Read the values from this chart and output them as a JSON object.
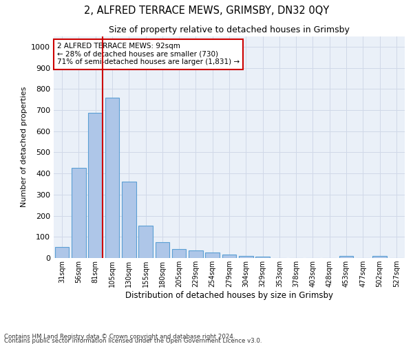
{
  "title": "2, ALFRED TERRACE MEWS, GRIMSBY, DN32 0QY",
  "subtitle": "Size of property relative to detached houses in Grimsby",
  "xlabel": "Distribution of detached houses by size in Grimsby",
  "ylabel": "Number of detached properties",
  "categories": [
    "31sqm",
    "56sqm",
    "81sqm",
    "105sqm",
    "130sqm",
    "155sqm",
    "180sqm",
    "205sqm",
    "229sqm",
    "254sqm",
    "279sqm",
    "304sqm",
    "329sqm",
    "353sqm",
    "378sqm",
    "403sqm",
    "428sqm",
    "453sqm",
    "477sqm",
    "502sqm",
    "527sqm"
  ],
  "values": [
    52,
    425,
    688,
    757,
    360,
    152,
    75,
    42,
    35,
    25,
    15,
    10,
    5,
    0,
    0,
    0,
    0,
    10,
    0,
    10,
    0
  ],
  "bar_color": "#aec6e8",
  "bar_edge_color": "#5a9fd4",
  "vline_color": "#cc0000",
  "annotation_text": "2 ALFRED TERRACE MEWS: 92sqm\n← 28% of detached houses are smaller (730)\n71% of semi-detached houses are larger (1,831) →",
  "annotation_box_color": "#ffffff",
  "annotation_box_edge": "#cc0000",
  "ylim": [
    0,
    1050
  ],
  "yticks": [
    0,
    100,
    200,
    300,
    400,
    500,
    600,
    700,
    800,
    900,
    1000
  ],
  "grid_color": "#d0d8e8",
  "bg_color": "#eaf0f8",
  "footer1": "Contains HM Land Registry data © Crown copyright and database right 2024.",
  "footer2": "Contains public sector information licensed under the Open Government Licence v3.0."
}
